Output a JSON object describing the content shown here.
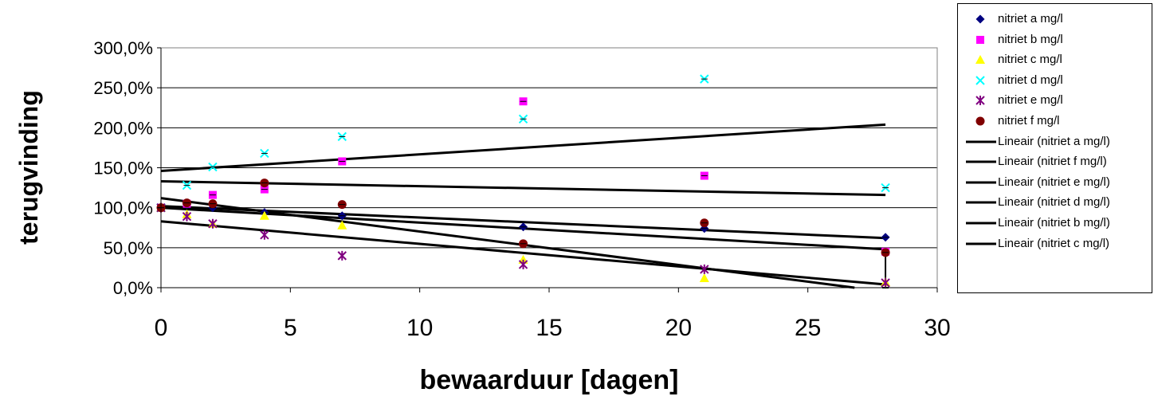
{
  "chart_data": {
    "type": "scatter",
    "title": "",
    "xlabel": "bewaarduur [dagen]",
    "ylabel": "terugvinding",
    "xlim": [
      0,
      30
    ],
    "ylim": [
      0,
      3.0
    ],
    "x_ticks": [
      "0",
      "5",
      "10",
      "15",
      "20",
      "25",
      "30"
    ],
    "y_ticks": [
      "0,0%",
      "50,0%",
      "100,0%",
      "150,0%",
      "200,0%",
      "250,0%",
      "300,0%"
    ],
    "grid": "horizontal",
    "legend_position": "right",
    "series": [
      {
        "name": "nitriet a mg/l",
        "marker": "diamond",
        "color": "#000080",
        "x": [
          0,
          1,
          2,
          4,
          7,
          14,
          21,
          28
        ],
        "y": [
          1.0,
          1.04,
          1.0,
          0.94,
          0.9,
          0.76,
          0.74,
          0.63
        ]
      },
      {
        "name": "nitriet b mg/l",
        "marker": "square",
        "color": "#FF00FF",
        "x": [
          0,
          1,
          2,
          4,
          7,
          14,
          21,
          28
        ],
        "y": [
          1.0,
          1.05,
          1.16,
          1.23,
          1.58,
          2.33,
          1.4,
          0.45
        ]
      },
      {
        "name": "nitriet c  mg/l",
        "marker": "triangle",
        "color": "#FFFF00",
        "x": [
          0,
          1,
          2,
          4,
          7,
          14,
          21,
          28
        ],
        "y": [
          1.0,
          0.92,
          0.8,
          0.9,
          0.78,
          0.35,
          0.12,
          0.07
        ]
      },
      {
        "name": "nitriet d  mg/l",
        "marker": "x",
        "color": "#00FFFF",
        "x": [
          0,
          1,
          2,
          4,
          7,
          14,
          21,
          28
        ],
        "y": [
          1.0,
          1.28,
          1.51,
          1.68,
          1.89,
          2.11,
          2.61,
          1.25
        ]
      },
      {
        "name": "nitriet e mg/l",
        "marker": "star",
        "color": "#800080",
        "x": [
          0,
          1,
          2,
          4,
          7,
          14,
          21,
          28
        ],
        "y": [
          1.0,
          0.89,
          0.8,
          0.66,
          0.4,
          0.29,
          0.23,
          0.06
        ]
      },
      {
        "name": "nitriet f mg/l",
        "marker": "circle",
        "color": "#800000",
        "x": [
          0,
          1,
          2,
          4,
          7,
          14,
          21,
          28
        ],
        "y": [
          1.0,
          1.06,
          1.05,
          1.31,
          1.04,
          0.55,
          0.81,
          0.44
        ]
      }
    ],
    "trendlines": [
      {
        "name": "Lineair (nitriet a mg/l)",
        "color": "#000000",
        "x": [
          0,
          28
        ],
        "y": [
          1.02,
          0.62
        ]
      },
      {
        "name": "Lineair (nitriet f mg/l)",
        "color": "#000000",
        "x": [
          0,
          28
        ],
        "y": [
          1.0,
          0.48
        ]
      },
      {
        "name": "Lineair (nitriet e mg/l)",
        "color": "#000000",
        "x": [
          0,
          28
        ],
        "y": [
          0.83,
          0.04
        ]
      },
      {
        "name": "Lineair (nitriet d  mg/l)",
        "color": "#000000",
        "x": [
          0,
          28
        ],
        "y": [
          1.46,
          2.04
        ]
      },
      {
        "name": "Lineair (nitriet b mg/l)",
        "color": "#000000",
        "x": [
          0,
          28
        ],
        "y": [
          1.33,
          1.16
        ]
      },
      {
        "name": "Lineair (nitriet c  mg/l)",
        "color": "#000000",
        "x": [
          0,
          28
        ],
        "y": [
          1.12,
          -0.05
        ]
      }
    ],
    "error_bar": {
      "x": 28,
      "y_low": 0.0,
      "y_high": 0.47,
      "color": "#000000"
    }
  }
}
